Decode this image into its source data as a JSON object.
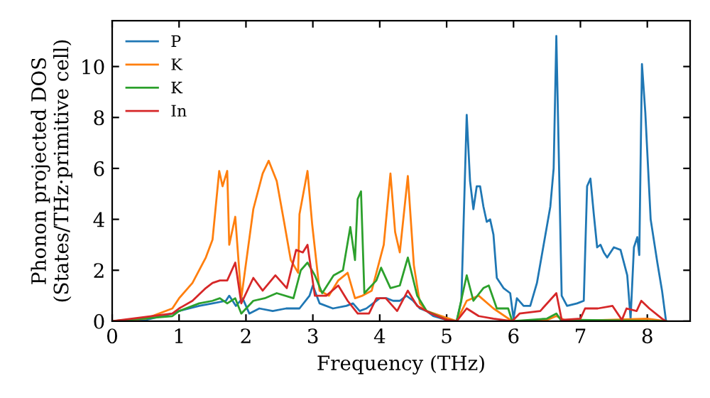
{
  "chart_data": {
    "type": "line",
    "xlabel": "Frequency (THz)",
    "ylabel": "Phonon projected DOS\n(States/THz·primitive cell)",
    "xlim": [
      0,
      8.64
    ],
    "ylim": [
      0,
      11.8
    ],
    "xticks": [
      0,
      1,
      2,
      3,
      4,
      5,
      6,
      7,
      8
    ],
    "yticks": [
      0,
      2,
      4,
      6,
      8,
      10
    ],
    "legend": "top left",
    "grid": false,
    "marker": "none",
    "line_style": "solid",
    "series": [
      {
        "name": "P",
        "color": "#1f77b4",
        "x": [
          0,
          0.5,
          0.9,
          1.0,
          1.3,
          1.5,
          1.7,
          1.75,
          1.85,
          1.95,
          2.05,
          2.2,
          2.4,
          2.6,
          2.8,
          2.95,
          3.0,
          3.1,
          3.3,
          3.5,
          3.6,
          3.7,
          3.8,
          3.9,
          4.0,
          4.1,
          4.2,
          4.3,
          4.4,
          4.5,
          4.6,
          4.7,
          4.8,
          5.0,
          5.15,
          5.22,
          5.3,
          5.35,
          5.4,
          5.45,
          5.5,
          5.55,
          5.6,
          5.65,
          5.7,
          5.75,
          5.85,
          5.95,
          6.0,
          6.05,
          6.15,
          6.25,
          6.35,
          6.45,
          6.55,
          6.6,
          6.64,
          6.72,
          6.8,
          6.95,
          7.05,
          7.1,
          7.15,
          7.2,
          7.25,
          7.3,
          7.35,
          7.4,
          7.5,
          7.6,
          7.7,
          7.75,
          7.8,
          7.85,
          7.88,
          7.92,
          7.97,
          8.05,
          8.15,
          8.22,
          8.28
        ],
        "values": [
          0,
          0.05,
          0.3,
          0.4,
          0.6,
          0.7,
          0.8,
          1.0,
          0.6,
          0.9,
          0.3,
          0.5,
          0.4,
          0.5,
          0.5,
          1.0,
          1.4,
          0.7,
          0.5,
          0.6,
          0.7,
          0.4,
          0.5,
          0.7,
          0.9,
          0.9,
          0.8,
          0.8,
          1.0,
          0.8,
          0.5,
          0.4,
          0.2,
          0.05,
          0,
          0.8,
          8.1,
          5.5,
          4.4,
          5.3,
          5.3,
          4.5,
          3.9,
          4.0,
          3.4,
          1.7,
          1.3,
          1.1,
          0.1,
          0.9,
          0.6,
          0.6,
          1.5,
          3.0,
          4.5,
          6.0,
          11.2,
          1.0,
          0.6,
          0.7,
          0.8,
          5.3,
          5.6,
          4.2,
          2.9,
          3.0,
          2.7,
          2.5,
          2.9,
          2.8,
          1.8,
          0.1,
          2.9,
          3.3,
          2.6,
          10.1,
          8.2,
          4.0,
          2.3,
          1.2,
          0
        ]
      },
      {
        "name": "K",
        "color": "#ff7f0e",
        "x": [
          0,
          0.5,
          0.9,
          1.0,
          1.2,
          1.4,
          1.5,
          1.6,
          1.65,
          1.72,
          1.75,
          1.84,
          1.93,
          2.11,
          2.25,
          2.34,
          2.46,
          2.57,
          2.67,
          2.78,
          2.8,
          2.92,
          2.99,
          3.1,
          3.24,
          3.38,
          3.52,
          3.63,
          3.74,
          3.88,
          4.06,
          4.16,
          4.23,
          4.3,
          4.42,
          4.51,
          4.6,
          4.7,
          4.98,
          5.15,
          5.3,
          5.48,
          5.7,
          5.98,
          6.5,
          6.64,
          6.8,
          8.0,
          8.28
        ],
        "values": [
          0,
          0.1,
          0.5,
          0.9,
          1.5,
          2.5,
          3.2,
          5.9,
          5.3,
          5.9,
          3.0,
          4.1,
          0.9,
          4.4,
          5.8,
          6.3,
          5.5,
          3.9,
          2.4,
          1.9,
          4.2,
          5.9,
          3.8,
          1.2,
          1.0,
          1.6,
          1.9,
          0.9,
          1.0,
          1.2,
          3.0,
          5.8,
          3.5,
          2.7,
          5.7,
          2.2,
          0.7,
          0.4,
          0.15,
          0,
          0.8,
          1.0,
          0.5,
          0,
          0.05,
          0.2,
          0,
          0.1,
          0
        ]
      },
      {
        "name": "K",
        "color": "#2ca02c",
        "x": [
          0,
          0.9,
          1.0,
          1.3,
          1.5,
          1.61,
          1.72,
          1.84,
          1.93,
          2.11,
          2.28,
          2.46,
          2.71,
          2.82,
          2.92,
          3.03,
          3.14,
          3.31,
          3.45,
          3.56,
          3.63,
          3.67,
          3.72,
          3.77,
          3.95,
          4.02,
          4.16,
          4.3,
          4.42,
          4.56,
          4.7,
          5.0,
          5.15,
          5.3,
          5.4,
          5.55,
          5.63,
          5.75,
          5.92,
          5.98,
          6.5,
          6.64,
          6.72,
          7.0,
          8.28
        ],
        "values": [
          0,
          0.2,
          0.4,
          0.7,
          0.8,
          0.9,
          0.7,
          0.9,
          0.3,
          0.8,
          0.9,
          1.1,
          0.9,
          2.0,
          2.3,
          1.8,
          1.1,
          1.8,
          2.0,
          3.7,
          2.4,
          4.8,
          5.1,
          1.1,
          1.6,
          2.1,
          1.3,
          1.4,
          2.5,
          1.0,
          0.4,
          0.05,
          0,
          1.8,
          0.8,
          1.3,
          1.4,
          0.5,
          0.5,
          0,
          0.1,
          0.3,
          0,
          0.05,
          0
        ]
      },
      {
        "name": "In",
        "color": "#d62728",
        "x": [
          0,
          0.9,
          1.0,
          1.2,
          1.4,
          1.5,
          1.61,
          1.72,
          1.84,
          1.93,
          2.11,
          2.25,
          2.44,
          2.61,
          2.75,
          2.85,
          2.92,
          3.03,
          3.2,
          3.38,
          3.52,
          3.67,
          3.84,
          3.95,
          4.09,
          4.26,
          4.42,
          4.56,
          4.77,
          5.0,
          5.15,
          5.3,
          5.48,
          5.7,
          5.98,
          6.09,
          6.4,
          6.64,
          6.72,
          7.0,
          7.07,
          7.26,
          7.48,
          7.62,
          7.69,
          7.84,
          7.91,
          8.03,
          8.22,
          8.28
        ],
        "values": [
          0,
          0.3,
          0.5,
          0.8,
          1.3,
          1.5,
          1.6,
          1.6,
          2.3,
          0.7,
          1.7,
          1.2,
          1.8,
          1.3,
          2.8,
          2.7,
          3.0,
          1.0,
          1.0,
          1.4,
          0.8,
          0.3,
          0.3,
          0.9,
          0.9,
          0.4,
          1.2,
          0.6,
          0.3,
          0.05,
          0,
          0.5,
          0.2,
          0.1,
          0,
          0.3,
          0.4,
          1.1,
          0.05,
          0.1,
          0.5,
          0.5,
          0.6,
          0.05,
          0.5,
          0.4,
          0.8,
          0.5,
          0.1,
          0
        ]
      }
    ]
  }
}
